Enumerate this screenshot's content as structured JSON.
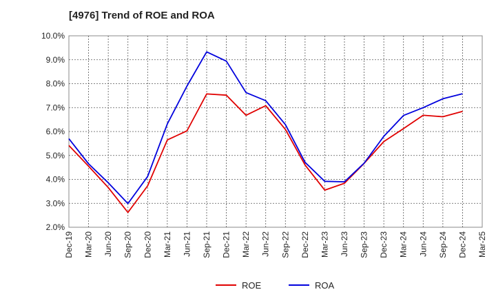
{
  "chart_data": {
    "type": "line",
    "title": "[4976]  Trend of ROE and ROA",
    "xlabel": "",
    "ylabel": "",
    "categories": [
      "Dec-19",
      "Mar-20",
      "Jun-20",
      "Sep-20",
      "Dec-20",
      "Mar-21",
      "Jun-21",
      "Sep-21",
      "Dec-21",
      "Mar-22",
      "Jun-22",
      "Sep-22",
      "Dec-22",
      "Mar-23",
      "Jun-23",
      "Sep-23",
      "Dec-23",
      "Mar-24",
      "Jun-24",
      "Sep-24",
      "Dec-24",
      "Mar-25"
    ],
    "ylim": [
      2.0,
      10.0
    ],
    "y_ticks": [
      "2.0%",
      "3.0%",
      "4.0%",
      "5.0%",
      "6.0%",
      "7.0%",
      "8.0%",
      "9.0%",
      "10.0%"
    ],
    "grid": true,
    "legend_position": "bottom",
    "series": [
      {
        "name": "ROE",
        "color": "#e00000",
        "values": [
          5.42,
          4.55,
          3.66,
          2.62,
          3.73,
          5.65,
          6.03,
          7.57,
          7.52,
          6.68,
          7.08,
          6.09,
          4.6,
          3.55,
          3.84,
          4.67,
          5.58,
          6.12,
          6.68,
          6.62,
          6.84,
          null
        ]
      },
      {
        "name": "ROA",
        "color": "#0000dd",
        "values": [
          5.7,
          4.65,
          3.86,
          2.99,
          4.12,
          6.32,
          7.9,
          9.33,
          8.94,
          7.63,
          7.29,
          6.29,
          4.71,
          3.92,
          3.9,
          4.68,
          5.8,
          6.67,
          7.0,
          7.37,
          7.58,
          null
        ]
      }
    ]
  }
}
